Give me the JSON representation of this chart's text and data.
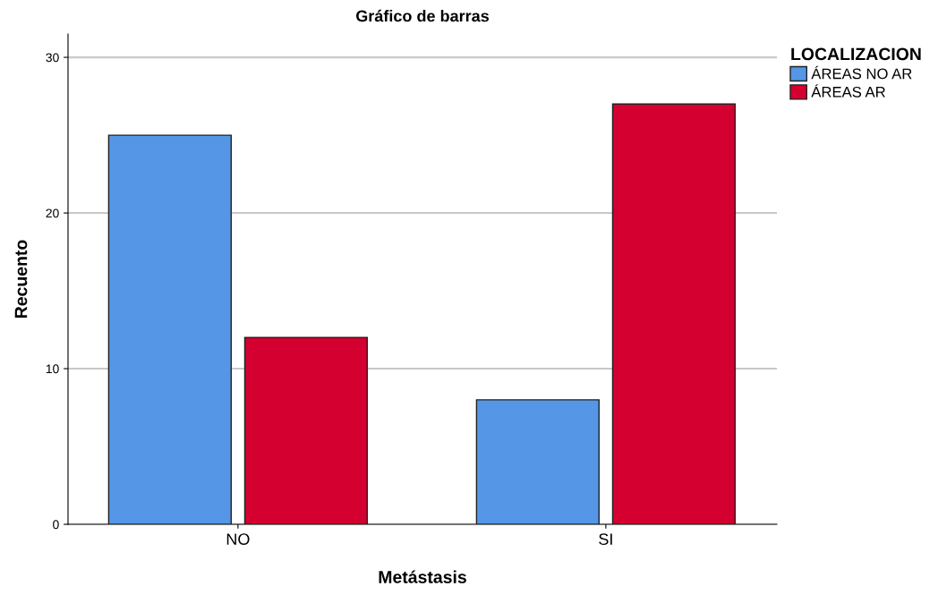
{
  "chart_data": {
    "type": "bar",
    "title": "Gráfico de barras",
    "xlabel": "Metástasis",
    "ylabel": "Recuento",
    "legend_title": "LOCALIZACION",
    "categories": [
      "NO",
      "SI"
    ],
    "series": [
      {
        "name": "ÁREAS NO AR",
        "color": "#5596e6",
        "values": [
          25,
          8
        ]
      },
      {
        "name": "ÁREAS AR",
        "color": "#d40030",
        "values": [
          12,
          27
        ]
      }
    ],
    "ylim": [
      0,
      31.5
    ],
    "yticks": [
      0,
      10,
      20,
      30
    ],
    "grid": "y",
    "legend": "top right"
  }
}
